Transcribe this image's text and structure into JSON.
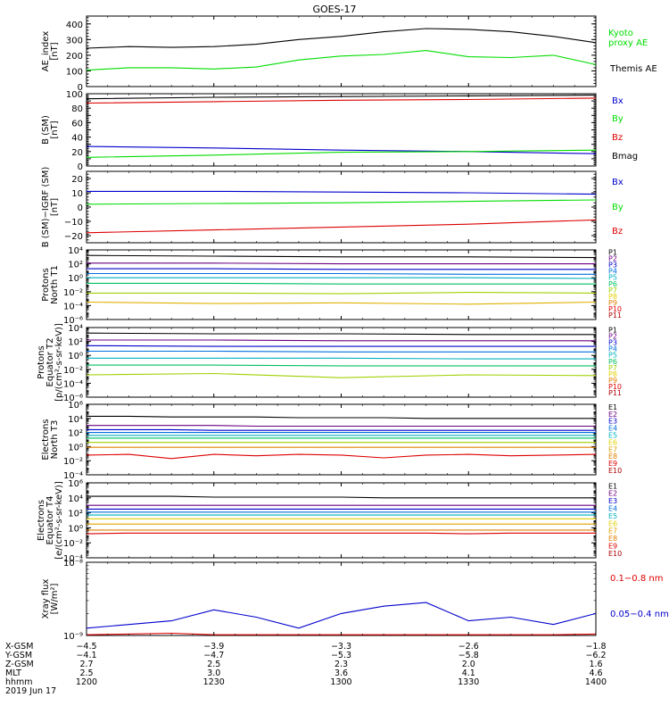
{
  "title": "GOES-17",
  "date_label": "2019 Jun 17",
  "colors": {
    "black": "#000000",
    "green": "#00dd00",
    "blue": "#0000cc",
    "red": "#dd0000"
  },
  "chart_data": [
    {
      "id": "ae",
      "type": "line",
      "ylabel": [
        "AE_index",
        "[nT]"
      ],
      "ylim": [
        0,
        450
      ],
      "log": false,
      "yticks": [
        0,
        100,
        200,
        300,
        400
      ],
      "ytick_labels": [
        "0",
        "100",
        "200",
        "300",
        "400"
      ],
      "x": [
        1200,
        1210,
        1220,
        1230,
        1240,
        1250,
        1300,
        1310,
        1320,
        1330,
        1340,
        1350,
        1400
      ],
      "series": [
        {
          "name": "Kyoto proxy AE",
          "label_lines": [
            "Kyoto",
            "proxy AE"
          ],
          "color": "#00dd00",
          "values": [
            105,
            120,
            120,
            112,
            125,
            170,
            195,
            205,
            230,
            190,
            185,
            200,
            140
          ]
        },
        {
          "name": "Themis AE",
          "label_lines": [
            "Themis AE"
          ],
          "color": "#000000",
          "values": [
            245,
            255,
            250,
            255,
            270,
            300,
            320,
            350,
            370,
            365,
            350,
            320,
            280
          ]
        }
      ]
    },
    {
      "id": "bsm",
      "type": "line",
      "ylabel": [
        "B (SM)",
        "[nT]"
      ],
      "ylim": [
        0,
        100
      ],
      "log": false,
      "yticks": [
        0,
        10,
        20,
        30,
        40,
        50,
        60,
        70,
        80,
        90,
        100
      ],
      "ytick_labels": [
        "0",
        "20",
        "40",
        "60",
        "80",
        "100"
      ],
      "label_every": 2,
      "x": [
        1200,
        1230,
        1300,
        1330,
        1400
      ],
      "series": [
        {
          "name": "Bx",
          "color": "#0000cc",
          "values": [
            27,
            25,
            22,
            20,
            17
          ]
        },
        {
          "name": "By",
          "color": "#00dd00",
          "values": [
            12,
            15,
            19,
            20,
            22
          ]
        },
        {
          "name": "Bz",
          "color": "#dd0000",
          "values": [
            87,
            89,
            91,
            92,
            94
          ]
        },
        {
          "name": "Bmag",
          "color": "#000000",
          "values": [
            93,
            95,
            96,
            97,
            98
          ]
        }
      ]
    },
    {
      "id": "bigrf",
      "type": "line",
      "ylabel": [
        "B (SM)−IGRF (SM)",
        "[nT]"
      ],
      "ylim": [
        -25,
        25
      ],
      "log": false,
      "yticks": [
        -20,
        -10,
        0,
        10,
        20
      ],
      "ytick_labels": [
        "−20",
        "−10",
        "0",
        "10",
        "20"
      ],
      "x": [
        1200,
        1230,
        1300,
        1330,
        1400
      ],
      "series": [
        {
          "name": "Bx",
          "color": "#0000cc",
          "values": [
            11,
            11,
            10.5,
            10,
            9
          ]
        },
        {
          "name": "By",
          "color": "#00dd00",
          "values": [
            2,
            2.5,
            3,
            4,
            5
          ]
        },
        {
          "name": "Bz",
          "color": "#dd0000",
          "values": [
            -18,
            -16,
            -14,
            -12,
            -9
          ]
        }
      ]
    },
    {
      "id": "p_t1",
      "type": "line",
      "ylabel": [
        "Protons",
        "North T1"
      ],
      "ylim": [
        -6,
        4
      ],
      "log": true,
      "yticks": [
        -6,
        -4,
        -2,
        0,
        2,
        4
      ],
      "ytick_labels": [
        "10⁻⁶",
        "10⁻⁴",
        "10⁻²",
        "10⁰",
        "10²",
        "10⁴"
      ],
      "x": [
        1200,
        1230,
        1300,
        1330,
        1400
      ],
      "series": [
        {
          "name": "P1",
          "color": "#000000",
          "values": [
            3.2,
            3.1,
            3.0,
            3.0,
            2.9
          ]
        },
        {
          "name": "P2",
          "color": "#6a0080",
          "values": [
            2.1,
            2.1,
            2.0,
            2.0,
            2.0
          ]
        },
        {
          "name": "P3",
          "color": "#0000cc",
          "values": [
            1.3,
            1.3,
            1.2,
            1.2,
            1.2
          ]
        },
        {
          "name": "P4",
          "color": "#0070e0",
          "values": [
            0.6,
            0.6,
            0.6,
            0.5,
            0.5
          ]
        },
        {
          "name": "P5",
          "color": "#00b0c0",
          "values": [
            0.0,
            0.0,
            0.0,
            0.0,
            -0.1
          ]
        },
        {
          "name": "P6",
          "color": "#00c060",
          "values": [
            -0.8,
            -0.8,
            -0.9,
            -0.9,
            -0.9
          ]
        },
        {
          "name": "P7",
          "color": "#a0d000",
          "values": [
            -2.2,
            -2.2,
            -2.3,
            -2.1,
            -2.2
          ]
        },
        {
          "name": "P8",
          "color": "#e0b000",
          "values": [
            -3.5,
            -3.7,
            -3.6,
            -3.8,
            -3.5
          ]
        }
      ],
      "legend_names": [
        "P1",
        "P2",
        "P3",
        "P4",
        "P5",
        "P6",
        "P7",
        "P8",
        "P9",
        "P10",
        "P11"
      ],
      "legend_colors": [
        "#000000",
        "#6a0080",
        "#0000cc",
        "#0070e0",
        "#00b0c0",
        "#00c060",
        "#a0d000",
        "#e0d000",
        "#e08000",
        "#dd0000",
        "#aa0000"
      ]
    },
    {
      "id": "p_t2",
      "type": "line",
      "ylabel": [
        "Protons",
        "Equator T2",
        "[p/(cm²-s-sr-keV)]"
      ],
      "ylim": [
        -6,
        4
      ],
      "log": true,
      "yticks": [
        -6,
        -4,
        -2,
        0,
        2,
        4
      ],
      "ytick_labels": [
        "10⁻⁶",
        "10⁻⁴",
        "10⁻²",
        "10⁰",
        "10²",
        "10⁴"
      ],
      "x": [
        1200,
        1230,
        1300,
        1330,
        1400
      ],
      "series": [
        {
          "name": "P1",
          "color": "#000000",
          "values": [
            3.2,
            3.1,
            3.1,
            3.0,
            3.0
          ]
        },
        {
          "name": "P2",
          "color": "#6a0080",
          "values": [
            2.2,
            2.2,
            2.1,
            2.1,
            2.1
          ]
        },
        {
          "name": "P3",
          "color": "#0000cc",
          "values": [
            1.4,
            1.3,
            1.3,
            1.3,
            1.3
          ]
        },
        {
          "name": "P4",
          "color": "#0070e0",
          "values": [
            0.6,
            0.6,
            0.5,
            0.5,
            0.5
          ]
        },
        {
          "name": "P5",
          "color": "#00b0c0",
          "values": [
            -0.4,
            -0.4,
            -0.4,
            -0.5,
            -0.5
          ]
        },
        {
          "name": "P6",
          "color": "#00c060",
          "values": [
            -1.4,
            -1.4,
            -1.5,
            -1.5,
            -1.5
          ]
        },
        {
          "name": "P7",
          "color": "#a0d000",
          "values": [
            -2.8,
            -2.6,
            -3.2,
            -2.8,
            -2.9
          ]
        }
      ],
      "legend_names": [
        "P1",
        "P2",
        "P3",
        "P4",
        "P5",
        "P6",
        "P7",
        "P8",
        "P9",
        "P10",
        "P11"
      ],
      "legend_colors": [
        "#000000",
        "#6a0080",
        "#0000cc",
        "#0070e0",
        "#00b0c0",
        "#00c060",
        "#a0d000",
        "#e0d000",
        "#e08000",
        "#dd0000",
        "#aa0000"
      ]
    },
    {
      "id": "e_t3",
      "type": "line",
      "ylabel": [
        "Electrons",
        "North T3"
      ],
      "ylim": [
        -4,
        6
      ],
      "log": true,
      "yticks": [
        -4,
        -2,
        0,
        2,
        4,
        6
      ],
      "ytick_labels": [
        "10⁻⁴",
        "10⁻²",
        "10⁰",
        "10²",
        "10⁴",
        "10⁶"
      ],
      "x": [
        1200,
        1210,
        1220,
        1230,
        1240,
        1250,
        1300,
        1310,
        1320,
        1330,
        1340,
        1350,
        1400
      ],
      "series": [
        {
          "name": "E1",
          "color": "#000000",
          "values": [
            4.3,
            4.3,
            4.2,
            4.2,
            4.2,
            4.1,
            4.1,
            4.1,
            4.0,
            4.0,
            4.0,
            4.0,
            4.0
          ]
        },
        {
          "name": "E2",
          "color": "#6a0080",
          "values": [
            3.0,
            3.0,
            3.0,
            3.0,
            2.9,
            2.9,
            2.9,
            2.9,
            2.9,
            2.9,
            2.9,
            2.9,
            2.9
          ]
        },
        {
          "name": "E3",
          "color": "#0000cc",
          "values": [
            2.4,
            2.4,
            2.4,
            2.3,
            2.3,
            2.3,
            2.3,
            2.3,
            2.3,
            2.3,
            2.3,
            2.3,
            2.3
          ]
        },
        {
          "name": "E4",
          "color": "#0070e0",
          "values": [
            2.0,
            2.0,
            2.0,
            2.0,
            2.0,
            2.0,
            2.0,
            2.0,
            2.0,
            2.0,
            2.0,
            2.0,
            2.0
          ]
        },
        {
          "name": "E5",
          "color": "#00b0c0",
          "values": [
            1.6,
            1.6,
            1.6,
            1.6,
            1.6,
            1.6,
            1.6,
            1.6,
            1.6,
            1.6,
            1.6,
            1.6,
            1.6
          ]
        },
        {
          "name": "E6",
          "color": "#00c060",
          "values": [
            1.2,
            1.2,
            1.2,
            1.2,
            1.2,
            1.2,
            1.2,
            1.2,
            1.2,
            1.2,
            1.2,
            1.2,
            1.2
          ]
        },
        {
          "name": "E7",
          "color": "#a0d000",
          "values": [
            0.6,
            0.6,
            0.6,
            0.6,
            0.6,
            0.6,
            0.6,
            0.6,
            0.6,
            0.6,
            0.6,
            0.6,
            0.6
          ]
        },
        {
          "name": "E8",
          "color": "#e08000",
          "values": [
            -0.1,
            -0.1,
            -0.1,
            -0.1,
            -0.1,
            -0.1,
            -0.1,
            -0.1,
            -0.1,
            -0.1,
            -0.1,
            -0.1,
            -0.1
          ]
        },
        {
          "name": "E9",
          "color": "#dd0000",
          "values": [
            -1.2,
            -1.1,
            -1.7,
            -1.1,
            -1.3,
            -1.1,
            -1.2,
            -1.6,
            -1.2,
            -1.1,
            -1.3,
            -1.2,
            -1.1
          ]
        }
      ],
      "legend_names": [
        "E1",
        "E2",
        "E3",
        "E4",
        "E5",
        "E6",
        "E7",
        "E8",
        "E9",
        "E10"
      ],
      "legend_colors": [
        "#000000",
        "#6a0080",
        "#0000cc",
        "#0070e0",
        "#00b0c0",
        "#e0d000",
        "#e0a000",
        "#e08000",
        "#dd0000",
        "#aa0000"
      ]
    },
    {
      "id": "e_t4",
      "type": "line",
      "ylabel": [
        "Electrons",
        "Equator T4",
        "[e/(cm²-s-sr-keV)]"
      ],
      "ylim": [
        -4,
        6
      ],
      "log": true,
      "yticks": [
        -4,
        -2,
        0,
        2,
        4,
        6
      ],
      "ytick_labels": [
        "10⁻⁴",
        "10⁻²",
        "10⁰",
        "10²",
        "10⁴",
        "10⁶"
      ],
      "x": [
        1200,
        1210,
        1220,
        1230,
        1240,
        1250,
        1300,
        1310,
        1320,
        1330,
        1340,
        1350,
        1400
      ],
      "series": [
        {
          "name": "E1",
          "color": "#000000",
          "values": [
            4.2,
            4.2,
            4.2,
            4.1,
            4.1,
            4.1,
            4.1,
            4.0,
            4.0,
            4.0,
            4.0,
            4.0,
            4.0
          ]
        },
        {
          "name": "E2",
          "color": "#6a0080",
          "values": [
            3.0,
            3.0,
            3.0,
            3.0,
            3.0,
            3.0,
            3.0,
            3.0,
            3.0,
            3.0,
            3.0,
            3.0,
            3.0
          ]
        },
        {
          "name": "E3",
          "color": "#0000cc",
          "values": [
            2.5,
            2.5,
            2.5,
            2.5,
            2.5,
            2.5,
            2.5,
            2.5,
            2.5,
            2.5,
            2.5,
            2.5,
            2.5
          ]
        },
        {
          "name": "E4",
          "color": "#0070e0",
          "values": [
            2.1,
            2.1,
            2.1,
            2.1,
            2.1,
            2.1,
            2.1,
            2.1,
            2.1,
            2.1,
            2.1,
            2.1,
            2.1
          ]
        },
        {
          "name": "E5",
          "color": "#00b0c0",
          "values": [
            1.7,
            1.7,
            1.7,
            1.7,
            1.7,
            1.7,
            1.7,
            1.7,
            1.7,
            1.7,
            1.7,
            1.7,
            1.7
          ]
        },
        {
          "name": "E6",
          "color": "#e0d000",
          "values": [
            1.2,
            1.2,
            1.2,
            1.2,
            1.2,
            1.2,
            1.2,
            1.2,
            1.2,
            1.2,
            1.2,
            1.2,
            1.2
          ]
        },
        {
          "name": "E7",
          "color": "#e0a000",
          "values": [
            0.5,
            0.5,
            0.5,
            0.5,
            0.5,
            0.5,
            0.5,
            0.5,
            0.5,
            0.5,
            0.5,
            0.5,
            0.5
          ]
        },
        {
          "name": "E8",
          "color": "#e08000",
          "values": [
            -0.3,
            -0.3,
            -0.3,
            -0.3,
            -0.3,
            -0.3,
            -0.3,
            -0.3,
            -0.3,
            -0.3,
            -0.3,
            -0.3,
            -0.3
          ]
        },
        {
          "name": "E9",
          "color": "#dd0000",
          "values": [
            -0.8,
            -0.7,
            -0.7,
            -0.7,
            -0.7,
            -0.7,
            -0.7,
            -0.7,
            -0.7,
            -0.8,
            -0.7,
            -0.7,
            -0.7
          ]
        }
      ],
      "legend_names": [
        "E1",
        "E2",
        "E3",
        "E4",
        "E5",
        "E6",
        "E7",
        "E8",
        "E9",
        "E10"
      ],
      "legend_colors": [
        "#000000",
        "#6a0080",
        "#0000cc",
        "#0070e0",
        "#00b0c0",
        "#e0d000",
        "#e0a000",
        "#e08000",
        "#dd0000",
        "#aa0000"
      ]
    },
    {
      "id": "xray",
      "type": "line",
      "ylabel": [
        "Xray flux",
        "[W/m²]"
      ],
      "ylim": [
        -9,
        -8
      ],
      "log": true,
      "yticks": [
        -9,
        -8
      ],
      "ytick_labels": [
        "10⁻⁹",
        "10⁻⁸"
      ],
      "x": [
        1200,
        1210,
        1220,
        1230,
        1240,
        1250,
        1300,
        1310,
        1320,
        1330,
        1340,
        1350,
        1400
      ],
      "series": [
        {
          "name": "0.1−0.8 nm",
          "color": "#dd0000",
          "values": [
            -8.99,
            -8.98,
            -8.97,
            -8.99,
            -8.99,
            -8.99,
            -8.99,
            -8.99,
            -8.99,
            -8.99,
            -8.99,
            -8.99,
            -8.98
          ]
        },
        {
          "name": "0.05−0.4 nm",
          "color": "#0000cc",
          "values": [
            -8.9,
            -8.85,
            -8.8,
            -8.65,
            -8.75,
            -8.9,
            -8.7,
            -8.6,
            -8.55,
            -8.8,
            -8.75,
            -8.85,
            -8.7
          ]
        }
      ]
    }
  ],
  "x_axis": {
    "row_labels": [
      "X-GSM",
      "Y-GSM",
      "Z-GSM",
      "MLT",
      "hhmm"
    ],
    "ticks": [
      {
        "hhmm": "1200",
        "values": [
          "−4.5",
          "−4.1",
          "2.7",
          "2.5",
          "1200"
        ]
      },
      {
        "hhmm": "1230",
        "values": [
          "−3.9",
          "−4.7",
          "2.5",
          "3.0",
          "1230"
        ]
      },
      {
        "hhmm": "1300",
        "values": [
          "−3.3",
          "−5.3",
          "2.3",
          "3.6",
          "1300"
        ]
      },
      {
        "hhmm": "1330",
        "values": [
          "−2.6",
          "−5.8",
          "2.0",
          "4.1",
          "1330"
        ]
      },
      {
        "hhmm": "1400",
        "values": [
          "−1.8",
          "−6.2",
          "1.6",
          "4.6",
          "1400"
        ]
      }
    ],
    "range": [
      1200,
      1400
    ]
  }
}
